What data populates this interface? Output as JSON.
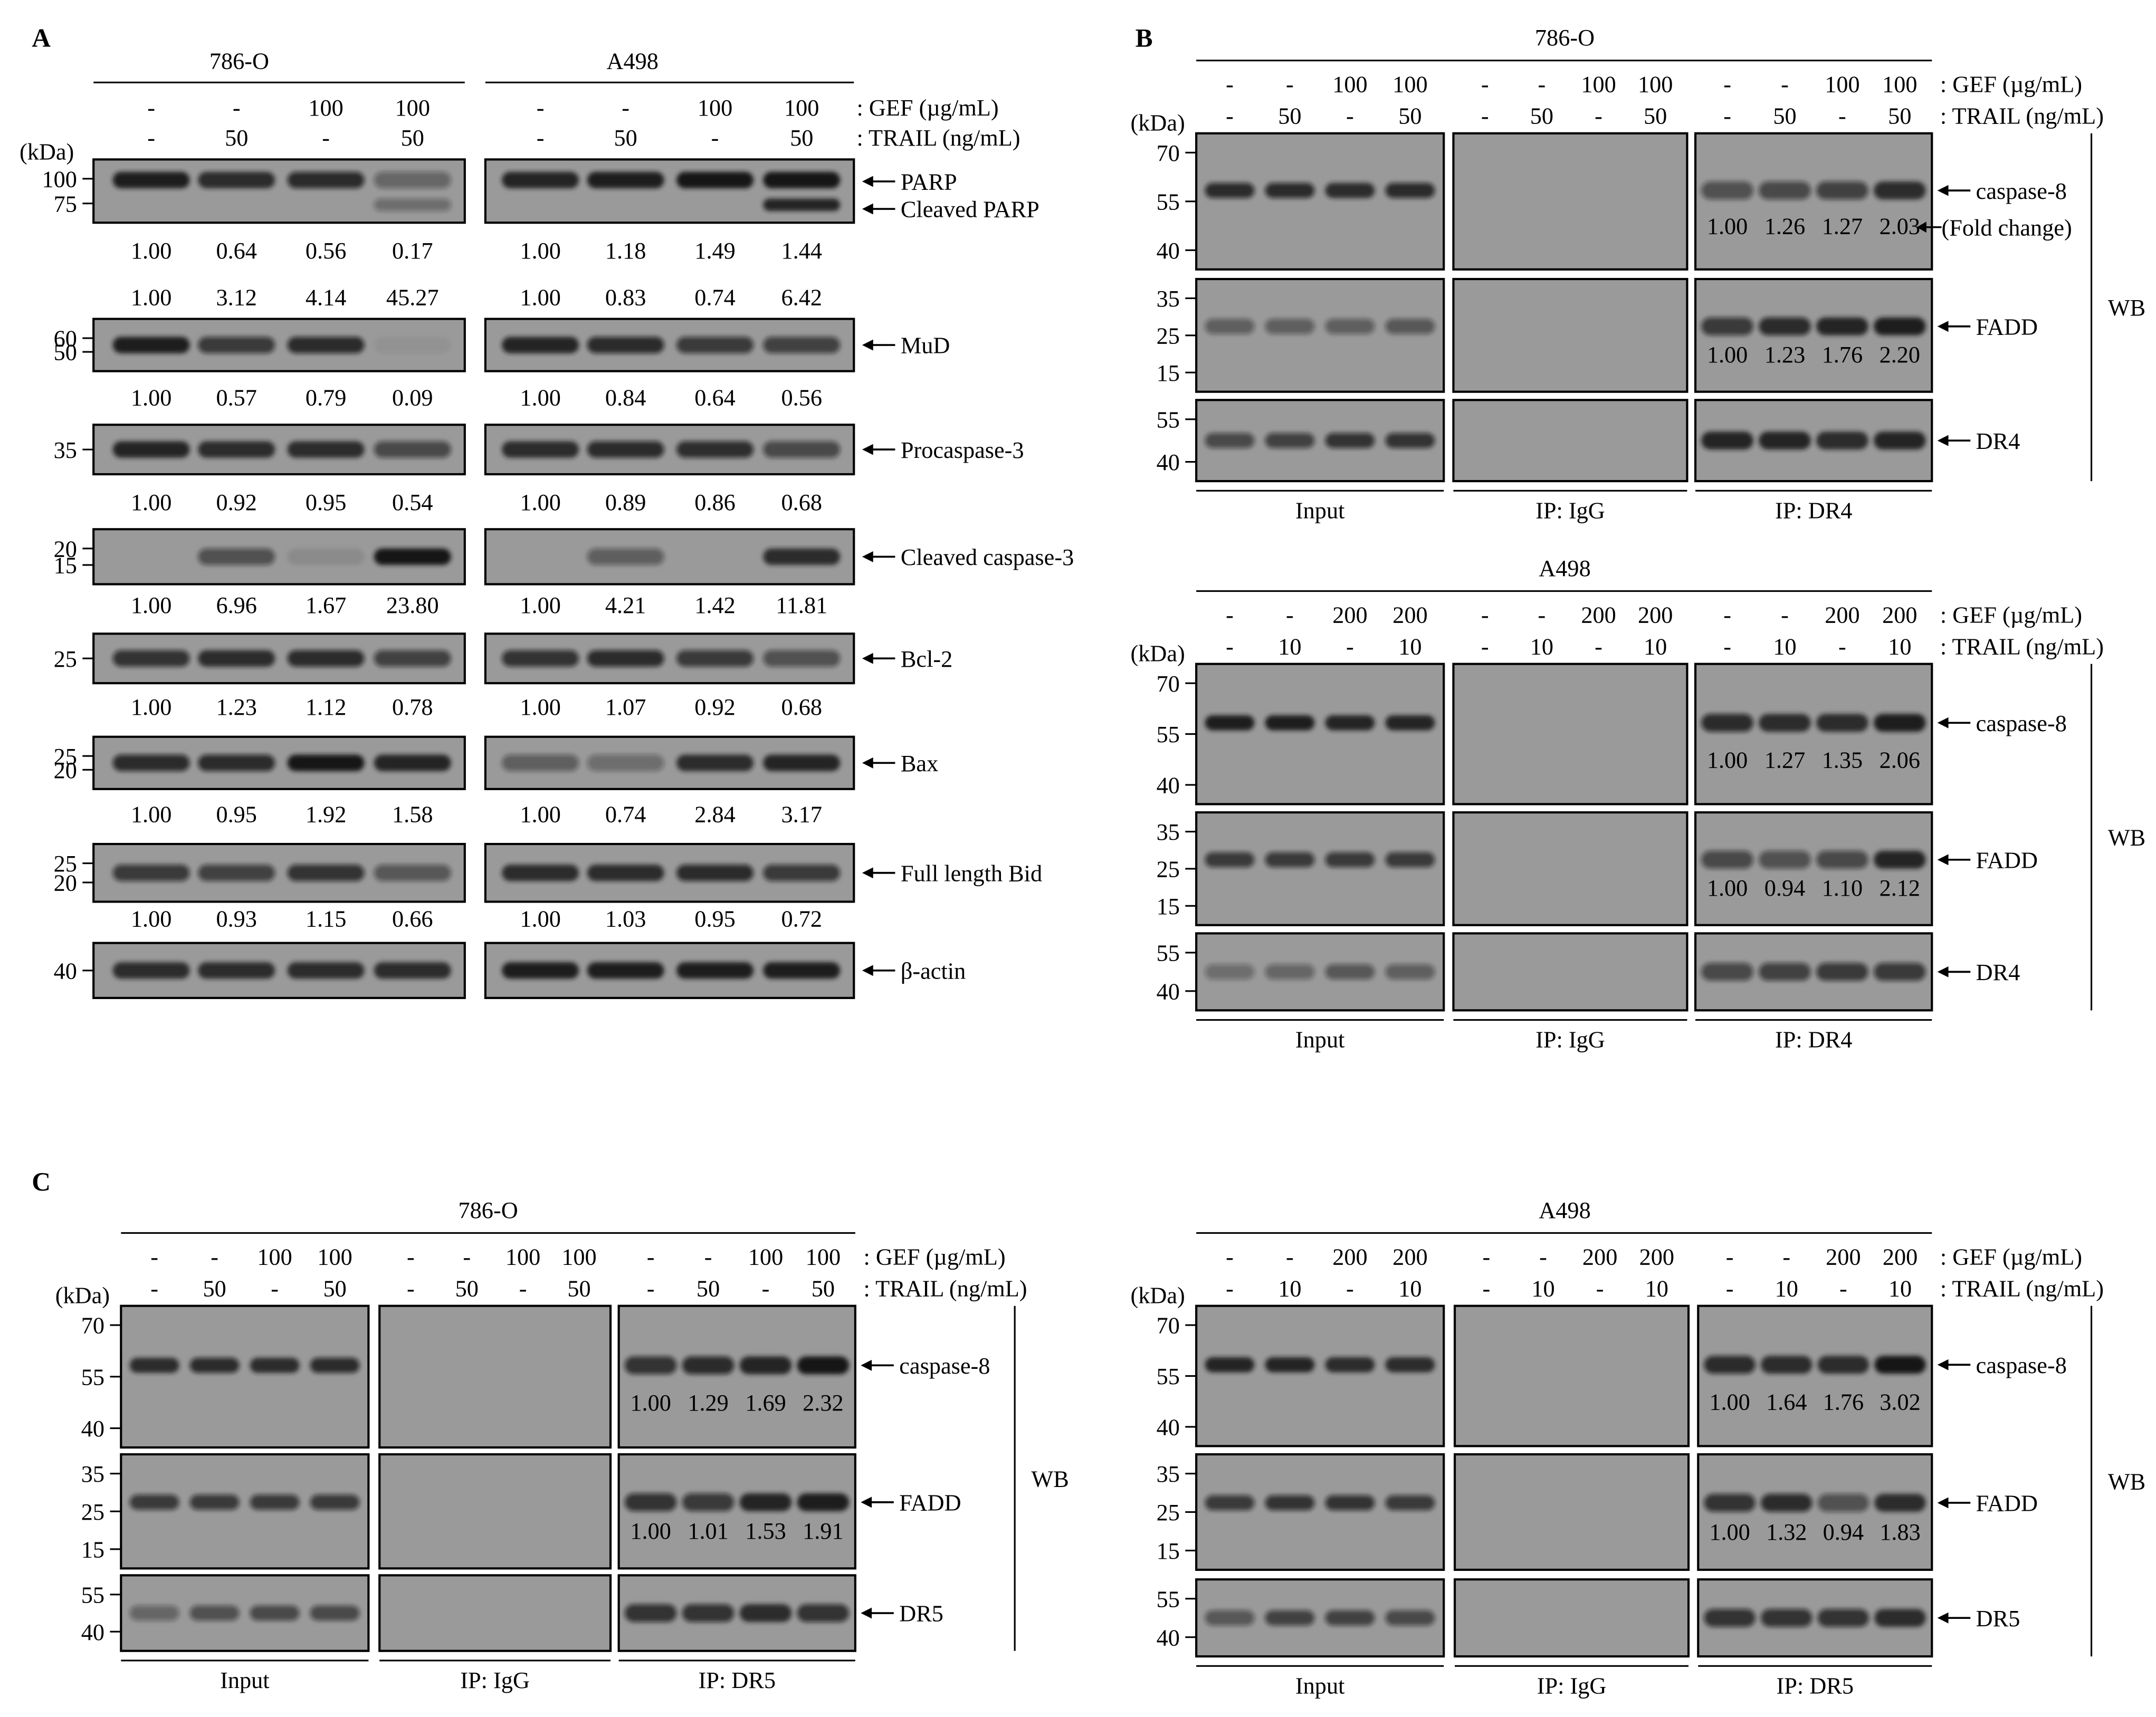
{
  "colors": {
    "blot_bg": "#9a9a9a",
    "band": "#141414",
    "ink": "#000000",
    "frame": "#000000"
  },
  "icons": {
    "arrow": "left-arrow-icon"
  },
  "panelA": {
    "label": "A",
    "cell_lines": [
      "786-O",
      "A498"
    ],
    "gef_row": [
      "-",
      "-",
      "100",
      "100"
    ],
    "gef_label": ": GEF (µg/mL)",
    "trail_row": [
      "-",
      "50",
      "-",
      "50"
    ],
    "trail_label": ": TRAIL (ng/mL)",
    "kda": "(kDa)",
    "blots": [
      {
        "name": "PARP",
        "target": "PARP",
        "target2": "Cleaved PARP",
        "markers": [
          "100",
          "75"
        ],
        "quant": [
          [
            "1.00",
            "0.64",
            "0.56",
            "0.17"
          ],
          [
            "1.00",
            "1.18",
            "1.49",
            "1.44"
          ]
        ],
        "quant2": [
          [
            "1.00",
            "3.12",
            "4.14",
            "45.27"
          ],
          [
            "1.00",
            "0.83",
            "0.74",
            "6.42"
          ]
        ],
        "bands": [
          [
            0.95,
            0.85,
            0.8,
            0.4
          ],
          [
            0.9,
            0.95,
            1.0,
            1.0
          ]
        ],
        "bands2": [
          [
            0,
            0,
            0,
            0.35
          ],
          [
            0,
            0,
            0,
            0.9
          ]
        ]
      },
      {
        "name": "MuD",
        "target": "MuD",
        "markers": [
          "60",
          "50"
        ],
        "quant": [
          [
            "1.00",
            "0.57",
            "0.79",
            "0.09"
          ],
          [
            "1.00",
            "0.84",
            "0.64",
            "0.56"
          ]
        ],
        "bands": [
          [
            0.95,
            0.7,
            0.8,
            0.05
          ],
          [
            0.9,
            0.8,
            0.7,
            0.65
          ]
        ]
      },
      {
        "name": "Procaspase-3",
        "target": "Procaspase-3",
        "markers": [
          "35"
        ],
        "quant": [
          [
            "1.00",
            "0.92",
            "0.95",
            "0.54"
          ],
          [
            "1.00",
            "0.89",
            "0.86",
            "0.68"
          ]
        ],
        "bands": [
          [
            0.9,
            0.85,
            0.85,
            0.6
          ],
          [
            0.85,
            0.8,
            0.78,
            0.6
          ]
        ]
      },
      {
        "name": "Cleaved caspase-3",
        "target": "Cleaved caspase-3",
        "markers": [
          "20",
          "15"
        ],
        "quant": [
          [
            "1.00",
            "6.96",
            "1.67",
            "23.80"
          ],
          [
            "1.00",
            "4.21",
            "1.42",
            "11.81"
          ]
        ],
        "bands": [
          [
            0,
            0.55,
            0.1,
            1.0
          ],
          [
            0,
            0.45,
            0,
            0.85
          ]
        ]
      },
      {
        "name": "Bcl-2",
        "target": "Bcl-2",
        "markers": [
          "25"
        ],
        "quant": [
          [
            "1.00",
            "1.23",
            "1.12",
            "0.78"
          ],
          [
            "1.00",
            "1.07",
            "0.92",
            "0.68"
          ]
        ],
        "bands": [
          [
            0.75,
            0.85,
            0.8,
            0.65
          ],
          [
            0.75,
            0.8,
            0.7,
            0.55
          ]
        ]
      },
      {
        "name": "Bax",
        "target": "Bax",
        "markers": [
          "25",
          "20"
        ],
        "quant": [
          [
            "1.00",
            "0.95",
            "1.92",
            "1.58"
          ],
          [
            "1.00",
            "0.74",
            "2.84",
            "3.17"
          ]
        ],
        "bands": [
          [
            0.8,
            0.8,
            1.0,
            0.9
          ],
          [
            0.45,
            0.35,
            0.85,
            0.9
          ]
        ]
      },
      {
        "name": "Full length Bid",
        "target": "Full length Bid",
        "markers": [
          "25",
          "20"
        ],
        "quant": [
          [
            "1.00",
            "0.93",
            "1.15",
            "0.66"
          ],
          [
            "1.00",
            "1.03",
            "0.95",
            "0.72"
          ]
        ],
        "bands": [
          [
            0.7,
            0.65,
            0.75,
            0.5
          ],
          [
            0.85,
            0.85,
            0.8,
            0.7
          ]
        ]
      },
      {
        "name": "beta-actin",
        "target": "β-actin",
        "markers": [
          "40"
        ],
        "bands": [
          [
            0.85,
            0.85,
            0.85,
            0.85
          ],
          [
            0.95,
            0.95,
            0.95,
            0.95
          ]
        ]
      }
    ]
  },
  "panelB": {
    "label": "B",
    "fold_change": "(Fold change)",
    "blocks": [
      {
        "cell_line": "786-O",
        "gef_row": [
          "-",
          "-",
          "100",
          "100",
          "-",
          "-",
          "100",
          "100",
          "-",
          "-",
          "100",
          "100"
        ],
        "trail_row": [
          "-",
          "50",
          "-",
          "50",
          "-",
          "50",
          "-",
          "50",
          "-",
          "50",
          "-",
          "50"
        ],
        "gef_label": ": GEF (µg/mL)",
        "trail_label": ": TRAIL (ng/mL)",
        "kda": "(kDa)",
        "groups": [
          "Input",
          "IP: IgG",
          "IP: DR4"
        ],
        "wb": "WB",
        "blots": [
          {
            "target": "caspase-8",
            "markers": [
              "70",
              "55",
              "40"
            ],
            "quant": [
              "1.00",
              "1.26",
              "1.27",
              "2.03"
            ],
            "input": [
              0.8,
              0.8,
              0.85,
              0.8
            ],
            "ip": [
              0.55,
              0.6,
              0.65,
              0.85
            ]
          },
          {
            "target": "FADD",
            "markers": [
              "35",
              "25",
              "15"
            ],
            "quant": [
              "1.00",
              "1.23",
              "1.76",
              "2.20"
            ],
            "input": [
              0.45,
              0.45,
              0.45,
              0.5
            ],
            "ip": [
              0.7,
              0.8,
              0.9,
              0.95
            ]
          },
          {
            "target": "DR4",
            "markers": [
              "55",
              "40"
            ],
            "input": [
              0.6,
              0.65,
              0.75,
              0.75
            ],
            "ip": [
              0.9,
              0.9,
              0.85,
              0.9
            ]
          }
        ]
      },
      {
        "cell_line": "A498",
        "gef_row": [
          "-",
          "-",
          "200",
          "200",
          "-",
          "-",
          "200",
          "200",
          "-",
          "-",
          "200",
          "200"
        ],
        "trail_row": [
          "-",
          "10",
          "-",
          "10",
          "-",
          "10",
          "-",
          "10",
          "-",
          "10",
          "-",
          "10"
        ],
        "gef_label": ": GEF (µg/mL)",
        "trail_label": ": TRAIL (ng/mL)",
        "kda": "(kDa)",
        "groups": [
          "Input",
          "IP: IgG",
          "IP: DR4"
        ],
        "wb": "WB",
        "blots": [
          {
            "target": "caspase-8",
            "markers": [
              "70",
              "55",
              "40"
            ],
            "quant": [
              "1.00",
              "1.27",
              "1.35",
              "2.06"
            ],
            "input": [
              0.95,
              0.95,
              0.9,
              0.9
            ],
            "ip": [
              0.8,
              0.85,
              0.85,
              0.95
            ]
          },
          {
            "target": "FADD",
            "markers": [
              "35",
              "25",
              "15"
            ],
            "quant": [
              "1.00",
              "0.94",
              "1.10",
              "2.12"
            ],
            "input": [
              0.7,
              0.7,
              0.7,
              0.7
            ],
            "ip": [
              0.6,
              0.55,
              0.6,
              0.9
            ]
          },
          {
            "target": "DR4",
            "markers": [
              "55",
              "40"
            ],
            "input": [
              0.35,
              0.4,
              0.5,
              0.45
            ],
            "ip": [
              0.6,
              0.65,
              0.7,
              0.7
            ]
          }
        ]
      }
    ]
  },
  "panelC": {
    "label": "C",
    "blocks": [
      {
        "cell_line": "786-O",
        "gef_row": [
          "-",
          "-",
          "100",
          "100",
          "-",
          "-",
          "100",
          "100",
          "-",
          "-",
          "100",
          "100"
        ],
        "trail_row": [
          "-",
          "50",
          "-",
          "50",
          "-",
          "50",
          "-",
          "50",
          "-",
          "50",
          "-",
          "50"
        ],
        "gef_label": ": GEF (µg/mL)",
        "trail_label": ": TRAIL (ng/mL)",
        "kda": "(kDa)",
        "groups": [
          "Input",
          "IP: IgG",
          "IP: DR5"
        ],
        "wb": "WB",
        "blots": [
          {
            "target": "caspase-8",
            "markers": [
              "70",
              "55",
              "40"
            ],
            "quant": [
              "1.00",
              "1.29",
              "1.69",
              "2.32"
            ],
            "input": [
              0.85,
              0.8,
              0.85,
              0.8
            ],
            "ip": [
              0.75,
              0.8,
              0.9,
              1.0
            ]
          },
          {
            "target": "FADD",
            "markers": [
              "35",
              "25",
              "15"
            ],
            "quant": [
              "1.00",
              "1.01",
              "1.53",
              "1.91"
            ],
            "input": [
              0.7,
              0.7,
              0.7,
              0.7
            ],
            "ip": [
              0.75,
              0.7,
              0.9,
              0.95
            ]
          },
          {
            "target": "DR5",
            "markers": [
              "55",
              "40"
            ],
            "input": [
              0.4,
              0.55,
              0.6,
              0.6
            ],
            "ip": [
              0.75,
              0.75,
              0.85,
              0.75
            ]
          }
        ]
      },
      {
        "cell_line": "A498",
        "gef_row": [
          "-",
          "-",
          "200",
          "200",
          "-",
          "-",
          "200",
          "200",
          "-",
          "-",
          "200",
          "200"
        ],
        "trail_row": [
          "-",
          "10",
          "-",
          "10",
          "-",
          "10",
          "-",
          "10",
          "-",
          "10",
          "-",
          "10"
        ],
        "gef_label": ": GEF (µg/mL)",
        "trail_label": ": TRAIL (ng/mL)",
        "kda": "(kDa)",
        "groups": [
          "Input",
          "IP: IgG",
          "IP: DR5"
        ],
        "wb": "WB",
        "blots": [
          {
            "target": "caspase-8",
            "markers": [
              "70",
              "55",
              "40"
            ],
            "quant": [
              "1.00",
              "1.64",
              "1.76",
              "3.02"
            ],
            "input": [
              0.9,
              0.9,
              0.85,
              0.85
            ],
            "ip": [
              0.8,
              0.85,
              0.85,
              1.0
            ]
          },
          {
            "target": "FADD",
            "markers": [
              "35",
              "25",
              "15"
            ],
            "quant": [
              "1.00",
              "1.32",
              "0.94",
              "1.83"
            ],
            "input": [
              0.7,
              0.75,
              0.75,
              0.7
            ],
            "ip": [
              0.75,
              0.8,
              0.55,
              0.85
            ]
          },
          {
            "target": "DR5",
            "markers": [
              "55",
              "40"
            ],
            "input": [
              0.5,
              0.65,
              0.65,
              0.6
            ],
            "ip": [
              0.75,
              0.75,
              0.75,
              0.85
            ]
          }
        ]
      }
    ]
  }
}
